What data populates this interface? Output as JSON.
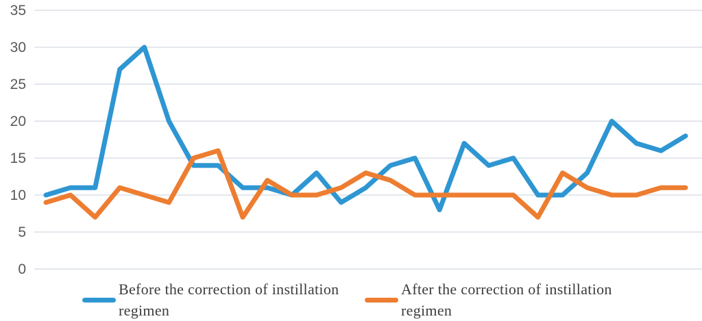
{
  "chart_data": {
    "type": "line",
    "title": "",
    "xlabel": "",
    "ylabel": "",
    "ylim": [
      0,
      35
    ],
    "yticks": [
      0,
      5,
      10,
      15,
      20,
      25,
      30,
      35
    ],
    "x_tick_labels": "none (27 unlabeled observation points)",
    "grid": "horizontal gridlines only",
    "legend_position": "bottom",
    "series": [
      {
        "name": "Before the correction of instillation regimen",
        "color": "#2E96D2",
        "values": [
          10,
          11,
          11,
          27,
          30,
          20,
          14,
          14,
          11,
          11,
          10,
          13,
          9,
          11,
          14,
          15,
          8,
          17,
          14,
          15,
          10,
          10,
          13,
          20,
          17,
          16,
          18
        ]
      },
      {
        "name": "After the correction of instillation regimen",
        "color": "#ED7D31",
        "values": [
          9,
          10,
          7,
          11,
          10,
          9,
          15,
          16,
          7,
          12,
          10,
          10,
          11,
          13,
          12,
          10,
          10,
          10,
          10,
          10,
          7,
          13,
          11,
          10,
          10,
          11,
          11
        ]
      }
    ]
  },
  "legend": {
    "items": [
      {
        "label": "Before the correction of instillation regimen",
        "color": "#2E96D2"
      },
      {
        "label": "After the correction of instillation regimen",
        "color": "#ED7D31"
      }
    ]
  },
  "axis": {
    "tick_label_color": "#595959",
    "gridline_color": "#DADFE5"
  },
  "colors": {
    "background": "#FFFFFF",
    "blue_series": "#2E96D2",
    "orange_series": "#ED7D31"
  }
}
